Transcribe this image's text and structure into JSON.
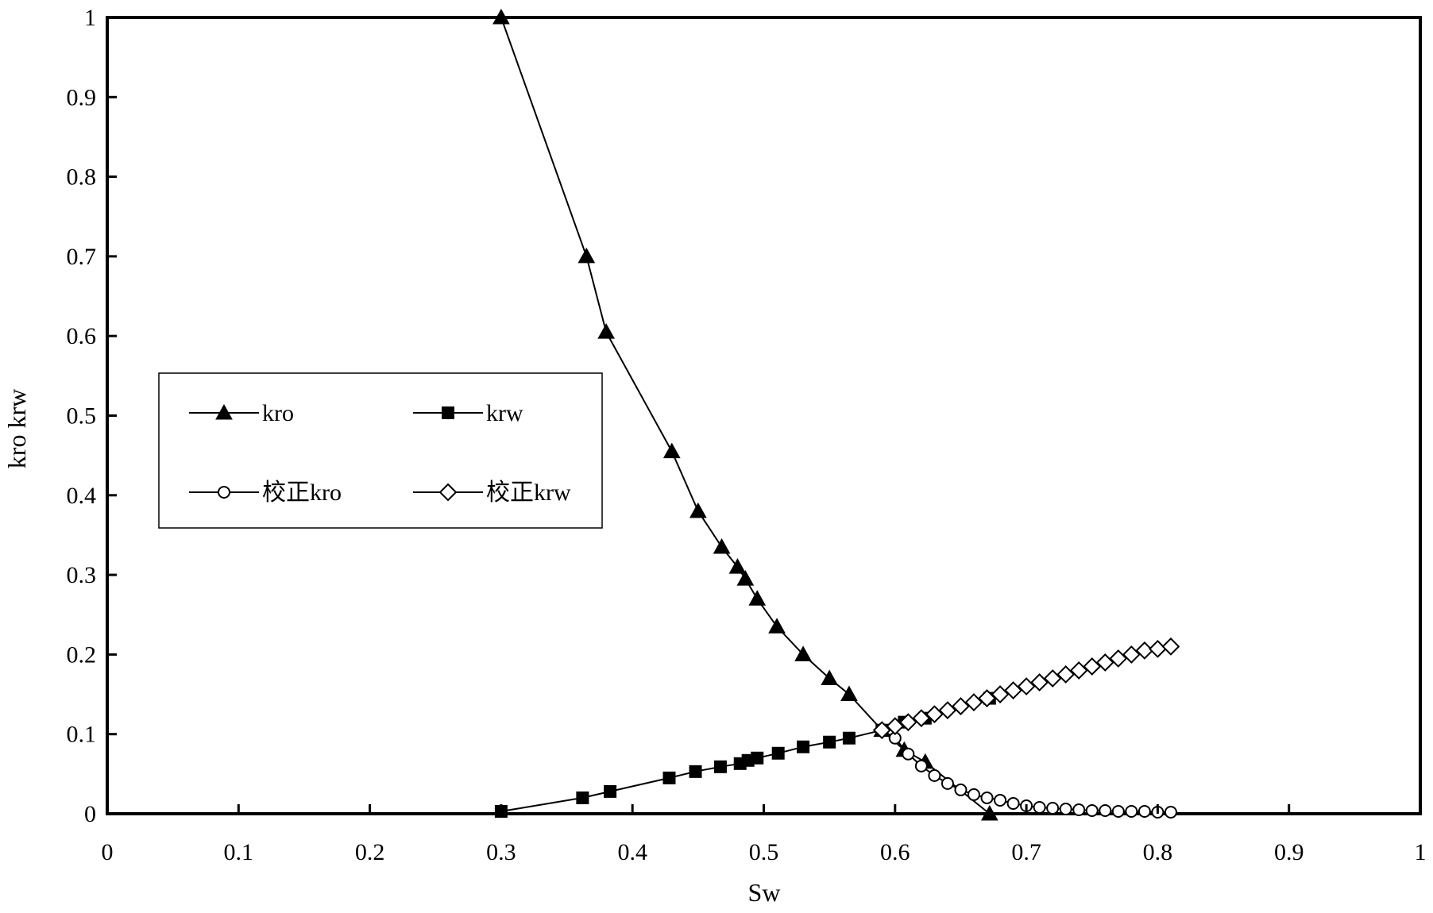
{
  "chart_data": {
    "type": "line",
    "xlabel": "Sw",
    "ylabel": "kro krw",
    "xlim": [
      0,
      1
    ],
    "ylim": [
      0,
      1
    ],
    "x_ticks": [
      "0",
      "0.1",
      "0.2",
      "0.3",
      "0.4",
      "0.5",
      "0.6",
      "0.7",
      "0.8",
      "0.9",
      "1"
    ],
    "y_ticks": [
      "0",
      "0.1",
      "0.2",
      "0.3",
      "0.4",
      "0.5",
      "0.6",
      "0.7",
      "0.8",
      "0.9",
      "1"
    ],
    "grid": false,
    "legend_position": "left-middle",
    "series": [
      {
        "name": "kro",
        "marker": "triangle-filled",
        "x": [
          0.3,
          0.365,
          0.38,
          0.43,
          0.45,
          0.468,
          0.48,
          0.486,
          0.495,
          0.51,
          0.53,
          0.55,
          0.565,
          0.59,
          0.607,
          0.623,
          0.672
        ],
        "y": [
          1.0,
          0.7,
          0.605,
          0.455,
          0.38,
          0.335,
          0.31,
          0.295,
          0.27,
          0.235,
          0.2,
          0.17,
          0.15,
          0.105,
          0.08,
          0.065,
          0.0
        ]
      },
      {
        "name": "krw",
        "marker": "square-filled",
        "x": [
          0.3,
          0.362,
          0.383,
          0.428,
          0.448,
          0.467,
          0.482,
          0.488,
          0.495,
          0.511,
          0.53,
          0.55,
          0.565,
          0.59,
          0.607,
          0.623,
          0.672
        ],
        "y": [
          0.003,
          0.02,
          0.028,
          0.045,
          0.053,
          0.059,
          0.063,
          0.067,
          0.07,
          0.076,
          0.084,
          0.09,
          0.095,
          0.105,
          0.115,
          0.12,
          0.145
        ]
      },
      {
        "name": "校正kro",
        "marker": "circle-open",
        "x": [
          0.59,
          0.6,
          0.61,
          0.62,
          0.63,
          0.64,
          0.65,
          0.66,
          0.67,
          0.68,
          0.69,
          0.7,
          0.71,
          0.72,
          0.73,
          0.74,
          0.75,
          0.76,
          0.77,
          0.78,
          0.79,
          0.8,
          0.81
        ],
        "y": [
          0.105,
          0.095,
          0.075,
          0.06,
          0.048,
          0.038,
          0.03,
          0.024,
          0.02,
          0.017,
          0.013,
          0.01,
          0.008,
          0.007,
          0.006,
          0.005,
          0.004,
          0.004,
          0.003,
          0.003,
          0.003,
          0.002,
          0.002
        ]
      },
      {
        "name": "校正krw",
        "marker": "diamond-open",
        "x": [
          0.59,
          0.6,
          0.61,
          0.62,
          0.63,
          0.64,
          0.65,
          0.66,
          0.67,
          0.68,
          0.69,
          0.7,
          0.71,
          0.72,
          0.73,
          0.74,
          0.75,
          0.76,
          0.77,
          0.78,
          0.79,
          0.8,
          0.81
        ],
        "y": [
          0.105,
          0.11,
          0.115,
          0.12,
          0.125,
          0.13,
          0.135,
          0.14,
          0.145,
          0.15,
          0.155,
          0.16,
          0.165,
          0.17,
          0.175,
          0.18,
          0.185,
          0.19,
          0.195,
          0.2,
          0.205,
          0.207,
          0.21
        ]
      }
    ]
  }
}
